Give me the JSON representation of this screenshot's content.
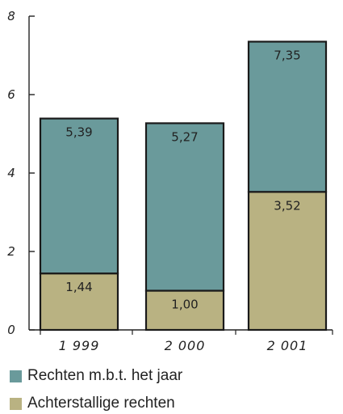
{
  "chart_data": {
    "type": "bar",
    "stacked": true,
    "categories": [
      "1 999",
      "2 000",
      "2 001"
    ],
    "yticks": [
      "0",
      "2",
      "4",
      "6",
      "8"
    ],
    "ylim": [
      0,
      8
    ],
    "series": [
      {
        "name": "Achterstallige rechten",
        "color": "#b9b282",
        "values": [
          1.44,
          1.0,
          3.52
        ],
        "labels": [
          "1,44",
          "1,00",
          "3,52"
        ]
      },
      {
        "name": "Rechten m.b.t. het jaar",
        "color": "#6a9a9b",
        "values": [
          3.95,
          4.27,
          3.83
        ],
        "totals": [
          5.39,
          5.27,
          7.35
        ],
        "labels": [
          "5,39",
          "5,27",
          "7,35"
        ]
      }
    ],
    "legend": [
      {
        "label": "Rechten m.b.t. het jaar",
        "color": "#6a9a9b"
      },
      {
        "label": "Achterstallige rechten",
        "color": "#b9b282"
      }
    ]
  }
}
